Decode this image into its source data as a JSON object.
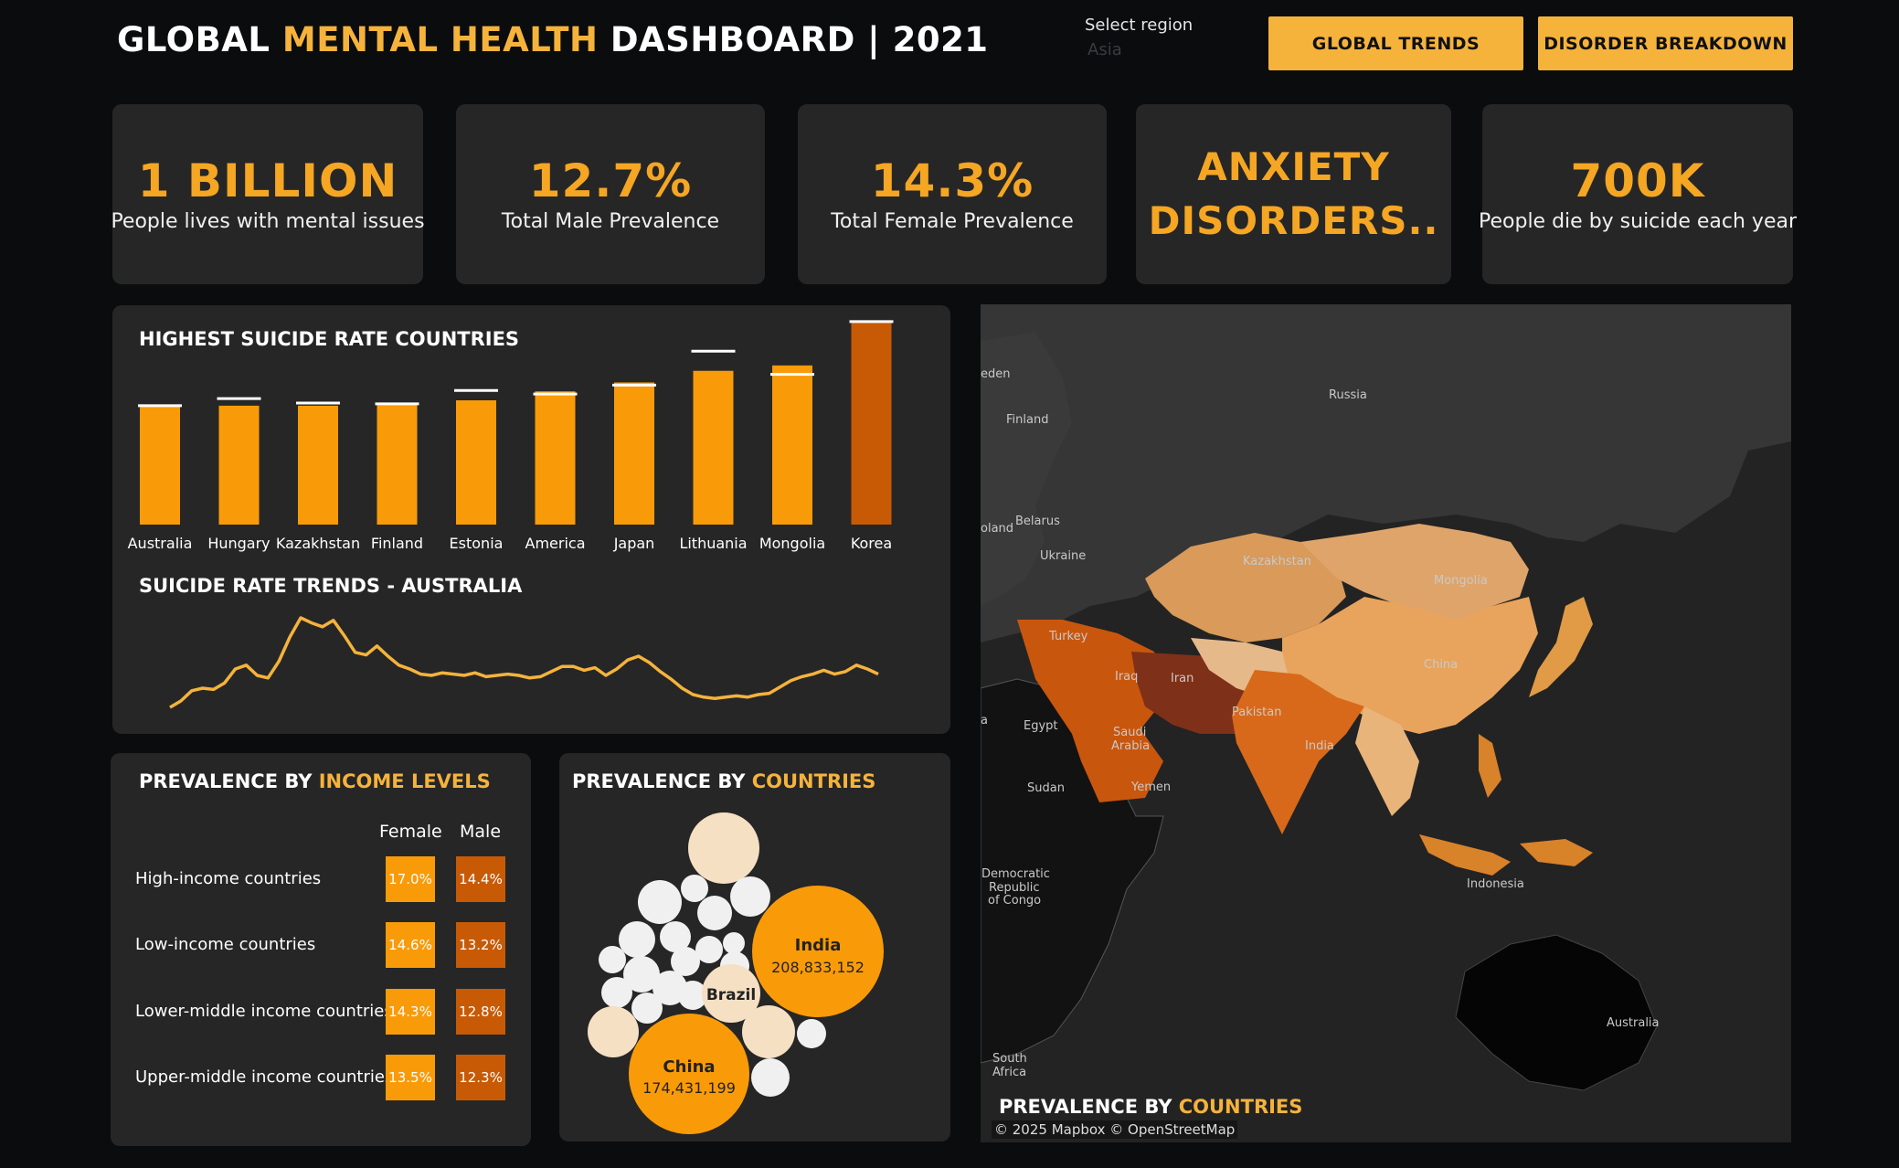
{
  "header": {
    "title_part1": "GLOBAL ",
    "title_accent": "MENTAL HEALTH",
    "title_part2": " DASHBOARD | 2021",
    "region_label": "Select region",
    "region_value": "Asia",
    "btn_global_trends": "GLOBAL TRENDS",
    "btn_disorder_breakdown": "DISORDER BREAKDOWN"
  },
  "kpis": [
    {
      "value": "1 BILLION",
      "label": "People lives with mental issues"
    },
    {
      "value": "12.7%",
      "label": "Total Male Prevalence"
    },
    {
      "value": "14.3%",
      "label": "Total Female Prevalence"
    },
    {
      "value_line1": "ANXIETY",
      "value_line2": "DISORDERS.."
    },
    {
      "value": "700K",
      "label": "People die by suicide each year"
    }
  ],
  "suicide_panel": {
    "title": "HIGHEST SUICIDE RATE COUNTRIES",
    "trend_title": "SUICIDE RATE TRENDS - AUSTRALIA"
  },
  "income_panel": {
    "title_part1": "PREVALENCE BY ",
    "title_accent": "INCOME LEVELS",
    "col_female": "Female",
    "col_male": "Male",
    "rows": [
      {
        "label": "High-income countries",
        "female": "17.0%",
        "male": "14.4%"
      },
      {
        "label": "Low-income countries",
        "female": "14.6%",
        "male": "13.2%"
      },
      {
        "label": "Lower-middle income countries",
        "female": "14.3%",
        "male": "12.8%"
      },
      {
        "label": "Upper-middle income countries",
        "female": "13.5%",
        "male": "12.3%"
      }
    ]
  },
  "bubble_panel": {
    "title_part1": "PREVALENCE BY ",
    "title_accent": "COUNTRIES",
    "india_name": "India",
    "india_value": "208,833,152",
    "china_name": "China",
    "china_value": "174,431,199",
    "brazil_name": "Brazil"
  },
  "map": {
    "title_part1": "PREVALENCE BY ",
    "title_accent": "COUNTRIES",
    "attribution": "© 2025 Mapbox © OpenStreetMap",
    "labels": {
      "russia": "Russia",
      "finland": "Finland",
      "sweden": "eden",
      "belarus": "Belarus",
      "poland": "oland",
      "ukraine": "Ukraine",
      "kazakhstan": "Kazakhstan",
      "mongolia": "Mongolia",
      "turkey": "Turkey",
      "iran": "Iran",
      "iraq": "Iraq",
      "pakistan": "Pakistan",
      "china": "China",
      "india": "India",
      "saudi": "Saudi",
      "arabia": "Arabia",
      "yemen": "Yemen",
      "egypt": "Egypt",
      "sudan": "Sudan",
      "libya": "a",
      "drc1": "Democratic",
      "drc2": "Republic",
      "drc3": "of Congo",
      "indonesia": "Indonesia",
      "australia": "Australia",
      "south": "South",
      "africa": "Africa"
    }
  },
  "chart_data": [
    {
      "type": "bar",
      "title": "HIGHEST SUICIDE RATE COUNTRIES",
      "categories": [
        "Australia",
        "Hungary",
        "Kazakhstan",
        "Finland",
        "Estonia",
        "America",
        "Japan",
        "Lithuania",
        "Mongolia",
        "Korea"
      ],
      "values": [
        13.2,
        13.3,
        13.3,
        13.5,
        13.9,
        14.9,
        15.9,
        17.2,
        17.8,
        22.8
      ],
      "reference_values": [
        13.3,
        14.1,
        13.6,
        13.5,
        15.0,
        14.6,
        15.6,
        19.4,
        16.8,
        22.7
      ],
      "colors": [
        "#f99b08",
        "#f99b08",
        "#f99b08",
        "#f99b08",
        "#f99b08",
        "#f99b08",
        "#f99b08",
        "#f99b08",
        "#f99b08",
        "#c85a05"
      ],
      "ylim": [
        0,
        23
      ]
    },
    {
      "type": "line",
      "title": "SUICIDE RATE TRENDS - AUSTRALIA",
      "values": [
        10.0,
        10.5,
        11.3,
        11.5,
        11.4,
        11.9,
        13.0,
        13.3,
        12.5,
        12.3,
        13.6,
        15.5,
        17.0,
        16.6,
        16.3,
        16.8,
        15.6,
        14.3,
        14.1,
        14.8,
        14.0,
        13.3,
        13.0,
        12.6,
        12.5,
        12.7,
        12.6,
        12.5,
        12.7,
        12.4,
        12.5,
        12.6,
        12.5,
        12.3,
        12.4,
        12.8,
        13.2,
        13.2,
        12.9,
        13.1,
        12.5,
        13.0,
        13.7,
        14.0,
        13.5,
        12.8,
        12.2,
        11.5,
        11.0,
        10.8,
        10.7,
        10.8,
        10.9,
        10.8,
        11.0,
        11.1,
        11.6,
        12.1,
        12.4,
        12.6,
        12.9,
        12.6,
        12.8,
        13.3,
        13.0,
        12.6
      ],
      "ylim": [
        9.5,
        17.5
      ],
      "color": "#f5b33c"
    }
  ]
}
